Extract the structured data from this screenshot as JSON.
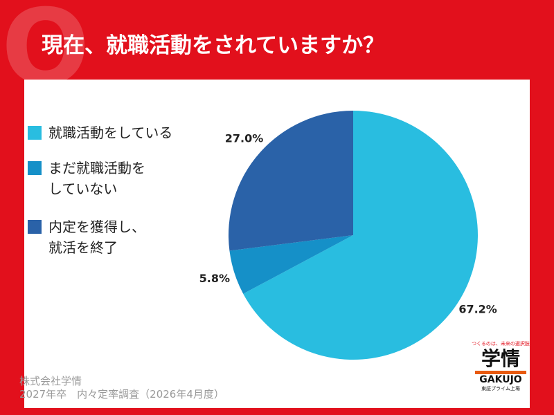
{
  "header": {
    "title": "現在、就職活動をされていますか？"
  },
  "chart_data": {
    "type": "pie",
    "categories": [
      "就職活動をしている",
      "まだ就職活動を\nしていない",
      "内定を獲得し、\n就活を終了"
    ],
    "values": [
      67.2,
      5.8,
      27.0
    ],
    "value_labels": [
      "67.2%",
      "5.8%",
      "27.0%"
    ],
    "colors": [
      "#29bde0",
      "#1590c8",
      "#2a62a8"
    ]
  },
  "footer": {
    "company": "株式会社学情",
    "survey": "2027年卒　内々定率調査（2026年4月度）"
  },
  "logo": {
    "tagline": "つくるのは、未来の選択肢",
    "name": "学情",
    "romaji": "GAKUJO",
    "listing": "東証プライム上場"
  }
}
